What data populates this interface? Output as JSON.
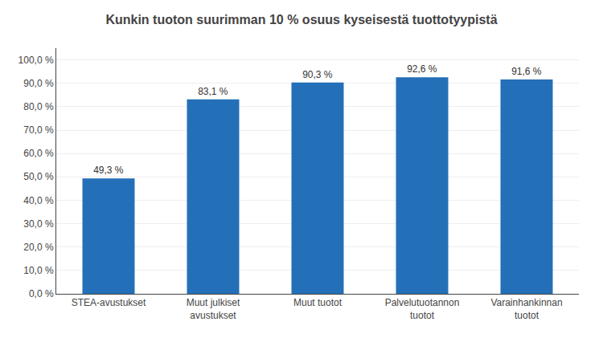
{
  "chart_data": {
    "type": "bar",
    "title": "Kunkin tuoton suurimman 10 % osuus kyseisestä tuottotyypistä",
    "categories": [
      "STEA-avustukset",
      "Muut julkiset\navustukset",
      "Muut tuotot",
      "Palvelutuotannon\ntuotot",
      "Varainhankinnan\ntuotot"
    ],
    "values": [
      49.3,
      83.1,
      90.3,
      92.6,
      91.6
    ],
    "value_labels": [
      "49,3 %",
      "83,1 %",
      "90,3 %",
      "92,6 %",
      "91,6 %"
    ],
    "data_labels": true,
    "color": "#2470b8",
    "ylim": [
      0,
      105
    ],
    "yticks": [
      {
        "value": 0,
        "label": "0,0 %"
      },
      {
        "value": 10,
        "label": "10,0 %"
      },
      {
        "value": 20,
        "label": "20,0 %"
      },
      {
        "value": 30,
        "label": "30,0 %"
      },
      {
        "value": 40,
        "label": "40,0 %"
      },
      {
        "value": 50,
        "label": "50,0 %"
      },
      {
        "value": 60,
        "label": "60,0 %"
      },
      {
        "value": 70,
        "label": "70,0 %"
      },
      {
        "value": 80,
        "label": "80,0 %"
      },
      {
        "value": 90,
        "label": "90,0 %"
      },
      {
        "value": 100,
        "label": "100,0 %"
      }
    ],
    "grid": true
  }
}
